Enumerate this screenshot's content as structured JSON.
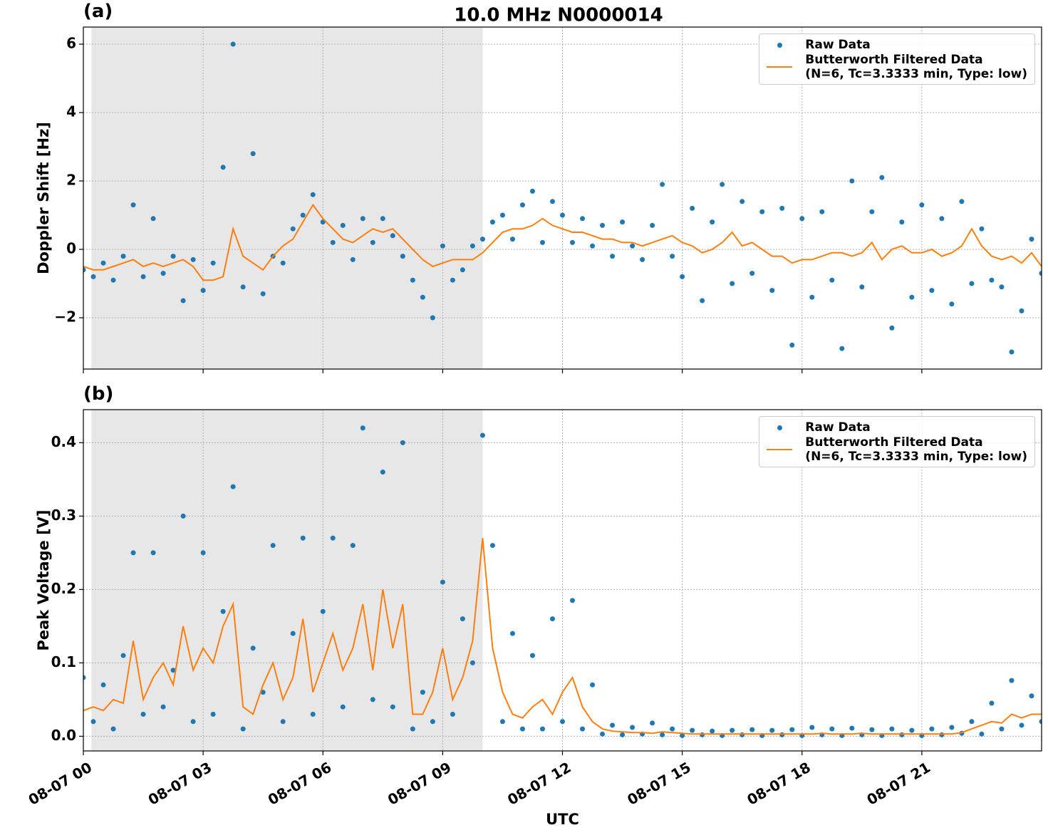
{
  "title": "10.0 MHz N0000014",
  "chart_data": [
    {
      "type": "line",
      "title": "(a)",
      "ylabel": "Doppler Shift [Hz]",
      "sharex": true,
      "ylim": [
        -3.5,
        6.5
      ],
      "yticks": [
        {
          "value": -2,
          "label": "−2"
        },
        0,
        2,
        4,
        6
      ],
      "grid": true,
      "shade": [
        0.2,
        10
      ],
      "legend": "upper right",
      "x": [
        0,
        0.25,
        0.5,
        0.75,
        1,
        1.25,
        1.5,
        1.75,
        2,
        2.25,
        2.5,
        2.75,
        3,
        3.25,
        3.5,
        3.75,
        4,
        4.25,
        4.5,
        4.75,
        5,
        5.25,
        5.5,
        5.75,
        6,
        6.25,
        6.5,
        6.75,
        7,
        7.25,
        7.5,
        7.75,
        8,
        8.25,
        8.5,
        8.75,
        9,
        9.25,
        9.5,
        9.75,
        10,
        10.25,
        10.5,
        10.75,
        11,
        11.25,
        11.5,
        11.75,
        12,
        12.25,
        12.5,
        12.75,
        13,
        13.25,
        13.5,
        13.75,
        14,
        14.25,
        14.5,
        14.75,
        15,
        15.25,
        15.5,
        15.75,
        16,
        16.25,
        16.5,
        16.75,
        17,
        17.25,
        17.5,
        17.75,
        18,
        18.25,
        18.5,
        18.75,
        19,
        19.25,
        19.5,
        19.75,
        20,
        20.25,
        20.5,
        20.75,
        21,
        21.25,
        21.5,
        21.75,
        22,
        22.25,
        22.5,
        22.75,
        23,
        23.25,
        23.5,
        23.75,
        24
      ],
      "series": [
        {
          "name": "Raw Data",
          "color": "#1f77b4",
          "style": "dots",
          "values": [
            -0.6,
            -0.8,
            -0.4,
            -0.9,
            -0.2,
            1.3,
            -0.8,
            0.9,
            -0.7,
            -0.2,
            -1.5,
            -0.3,
            -1.2,
            -0.4,
            2.4,
            6.0,
            -1.1,
            2.8,
            -1.3,
            -0.2,
            -0.4,
            0.6,
            1.0,
            1.6,
            0.8,
            0.2,
            0.7,
            -0.3,
            0.9,
            0.2,
            0.9,
            0.4,
            -0.2,
            -0.9,
            -1.4,
            -2.0,
            0.1,
            -0.9,
            -0.6,
            0.1,
            0.3,
            0.8,
            1.0,
            0.3,
            1.3,
            1.7,
            0.2,
            1.4,
            1.0,
            0.2,
            0.9,
            0.1,
            0.7,
            -0.2,
            0.8,
            0.1,
            -0.3,
            0.7,
            1.9,
            -0.2,
            -0.8,
            1.2,
            -1.5,
            0.8,
            1.9,
            -1.0,
            1.4,
            -0.7,
            1.1,
            -1.2,
            1.2,
            -2.8,
            0.9,
            -1.4,
            1.1,
            -0.9,
            -2.9,
            2.0,
            -1.1,
            1.1,
            2.1,
            -2.3,
            0.8,
            -1.4,
            1.3,
            -1.2,
            0.9,
            -1.6,
            1.4,
            -1.0,
            0.6,
            -0.9,
            -1.1,
            -3.0,
            -1.8,
            0.3,
            -0.7
          ]
        },
        {
          "name": "Butterworth Filtered Data\n(N=6, Tc=3.3333 min, Type: low)",
          "color": "#ff7f0e",
          "style": "line",
          "values": [
            -0.5,
            -0.6,
            -0.6,
            -0.5,
            -0.4,
            -0.3,
            -0.5,
            -0.4,
            -0.5,
            -0.4,
            -0.3,
            -0.5,
            -0.9,
            -0.9,
            -0.8,
            0.6,
            -0.2,
            -0.4,
            -0.6,
            -0.2,
            0.1,
            0.3,
            0.8,
            1.3,
            0.9,
            0.6,
            0.3,
            0.2,
            0.4,
            0.6,
            0.5,
            0.6,
            0.3,
            0,
            -0.3,
            -0.5,
            -0.4,
            -0.3,
            -0.3,
            -0.3,
            -0.1,
            0.2,
            0.5,
            0.6,
            0.6,
            0.7,
            0.9,
            0.7,
            0.6,
            0.5,
            0.5,
            0.4,
            0.3,
            0.3,
            0.2,
            0.2,
            0.1,
            0.2,
            0.3,
            0.4,
            0.2,
            0.1,
            -0.1,
            0,
            0.2,
            0.5,
            0.1,
            0.2,
            0,
            -0.2,
            -0.2,
            -0.4,
            -0.3,
            -0.3,
            -0.2,
            -0.1,
            -0.1,
            -0.2,
            -0.1,
            0.2,
            -0.3,
            0,
            0.1,
            -0.1,
            -0.1,
            0,
            -0.2,
            -0.1,
            0.1,
            0.6,
            0.1,
            -0.2,
            -0.3,
            -0.2,
            -0.4,
            -0.1,
            -0.5
          ]
        }
      ]
    },
    {
      "type": "line",
      "title": "(b)",
      "ylabel": "Peak Voltage [V]",
      "xlabel": "UTC",
      "xlim": [
        0,
        24
      ],
      "xticks": [
        {
          "value": 0,
          "label": "08-07 00"
        },
        {
          "value": 3,
          "label": "08-07 03"
        },
        {
          "value": 6,
          "label": "08-07 06"
        },
        {
          "value": 9,
          "label": "08-07 09"
        },
        {
          "value": 12,
          "label": "08-07 12"
        },
        {
          "value": 15,
          "label": "08-07 15"
        },
        {
          "value": 18,
          "label": "08-07 18"
        },
        {
          "value": 21,
          "label": "08-07 21"
        }
      ],
      "ylim": [
        -0.02,
        0.445
      ],
      "yticks": [
        {
          "value": 0,
          "label": "0.0"
        },
        0.1,
        0.2,
        0.3,
        0.4
      ],
      "grid": true,
      "shade": [
        0.2,
        10
      ],
      "legend": "upper right",
      "x": [
        0,
        0.25,
        0.5,
        0.75,
        1,
        1.25,
        1.5,
        1.75,
        2,
        2.25,
        2.5,
        2.75,
        3,
        3.25,
        3.5,
        3.75,
        4,
        4.25,
        4.5,
        4.75,
        5,
        5.25,
        5.5,
        5.75,
        6,
        6.25,
        6.5,
        6.75,
        7,
        7.25,
        7.5,
        7.75,
        8,
        8.25,
        8.5,
        8.75,
        9,
        9.25,
        9.5,
        9.75,
        10,
        10.25,
        10.5,
        10.75,
        11,
        11.25,
        11.5,
        11.75,
        12,
        12.25,
        12.5,
        12.75,
        13,
        13.25,
        13.5,
        13.75,
        14,
        14.25,
        14.5,
        14.75,
        15,
        15.25,
        15.5,
        15.75,
        16,
        16.25,
        16.5,
        16.75,
        17,
        17.25,
        17.5,
        17.75,
        18,
        18.25,
        18.5,
        18.75,
        19,
        19.25,
        19.5,
        19.75,
        20,
        20.25,
        20.5,
        20.75,
        21,
        21.25,
        21.5,
        21.75,
        22,
        22.25,
        22.5,
        22.75,
        23,
        23.25,
        23.5,
        23.75,
        24
      ],
      "series": [
        {
          "name": "Raw Data",
          "color": "#1f77b4",
          "style": "dots",
          "values": [
            0.08,
            0.02,
            0.07,
            0.01,
            0.11,
            0.25,
            0.03,
            0.25,
            0.04,
            0.09,
            0.3,
            0.02,
            0.25,
            0.03,
            0.17,
            0.34,
            0.01,
            0.12,
            0.06,
            0.26,
            0.02,
            0.14,
            0.27,
            0.03,
            0.17,
            0.27,
            0.04,
            0.26,
            0.42,
            0.05,
            0.36,
            0.04,
            0.4,
            0.01,
            0.06,
            0.02,
            0.21,
            0.03,
            0.16,
            0.1,
            0.41,
            0.26,
            0.02,
            0.14,
            0.01,
            0.11,
            0.01,
            0.16,
            0.02,
            0.185,
            0.01,
            0.07,
            0.003,
            0.015,
            0.002,
            0.012,
            0.003,
            0.018,
            0.002,
            0.01,
            0.001,
            0.008,
            0.002,
            0.007,
            0.001,
            0.008,
            0.002,
            0.009,
            0.001,
            0.008,
            0.002,
            0.009,
            0.001,
            0.012,
            0.002,
            0.01,
            0.001,
            0.011,
            0.002,
            0.009,
            0.001,
            0.01,
            0.002,
            0.008,
            0.001,
            0.01,
            0.002,
            0.012,
            0.004,
            0.02,
            0.003,
            0.045,
            0.01,
            0.076,
            0.015,
            0.055,
            0.02
          ]
        },
        {
          "name": "Butterworth Filtered Data\n(N=6, Tc=3.3333 min, Type: low)",
          "color": "#ff7f0e",
          "style": "line",
          "values": [
            0.035,
            0.04,
            0.035,
            0.05,
            0.045,
            0.13,
            0.05,
            0.08,
            0.1,
            0.07,
            0.15,
            0.09,
            0.12,
            0.1,
            0.15,
            0.18,
            0.04,
            0.03,
            0.07,
            0.1,
            0.05,
            0.08,
            0.16,
            0.06,
            0.1,
            0.14,
            0.09,
            0.12,
            0.18,
            0.09,
            0.2,
            0.12,
            0.18,
            0.03,
            0.03,
            0.06,
            0.12,
            0.05,
            0.08,
            0.13,
            0.27,
            0.12,
            0.06,
            0.03,
            0.025,
            0.04,
            0.05,
            0.03,
            0.06,
            0.08,
            0.04,
            0.02,
            0.01,
            0.007,
            0.006,
            0.005,
            0.005,
            0.004,
            0.006,
            0.005,
            0.004,
            0.003,
            0.003,
            0.003,
            0.003,
            0.003,
            0.003,
            0.003,
            0.003,
            0.003,
            0.003,
            0.003,
            0.003,
            0.003,
            0.004,
            0.003,
            0.003,
            0.003,
            0.004,
            0.003,
            0.003,
            0.003,
            0.003,
            0.003,
            0.003,
            0.003,
            0.003,
            0.003,
            0.005,
            0.01,
            0.015,
            0.02,
            0.018,
            0.03,
            0.025,
            0.03,
            0.03
          ]
        }
      ]
    }
  ]
}
